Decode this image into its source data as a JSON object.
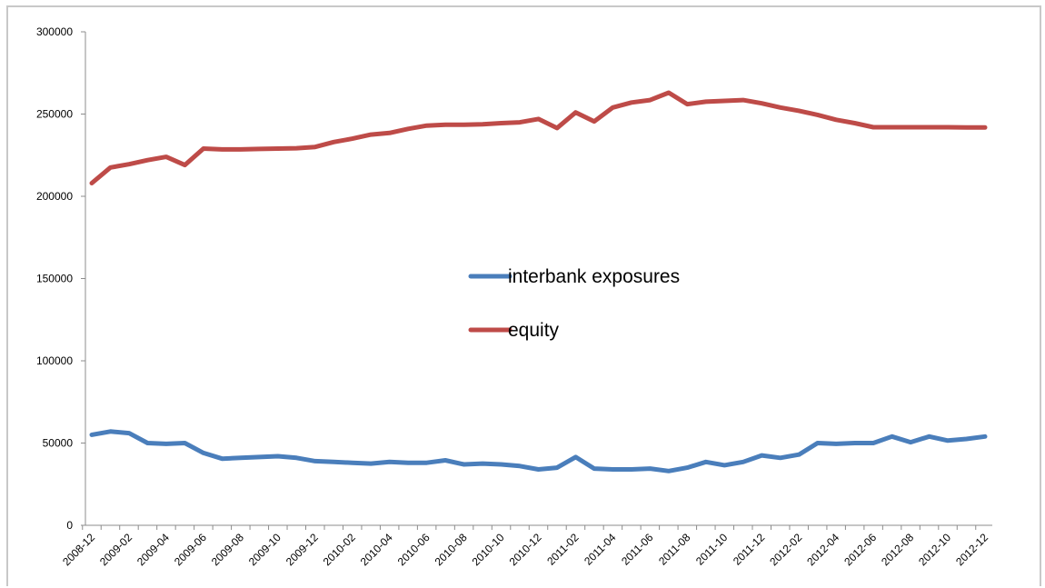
{
  "chart_data": {
    "type": "line",
    "title": "",
    "xlabel": "",
    "ylabel": "",
    "ylim": [
      0,
      300000
    ],
    "yticks": [
      "300000",
      "250000",
      "200000",
      "150000",
      "100000",
      "50000",
      "0"
    ],
    "x": [
      "2008-12",
      "2009-01",
      "2009-02",
      "2009-03",
      "2009-04",
      "2009-05",
      "2009-06",
      "2009-07",
      "2009-08",
      "2009-09",
      "2009-10",
      "2009-11",
      "2009-12",
      "2010-01",
      "2010-02",
      "2010-03",
      "2010-04",
      "2010-05",
      "2010-06",
      "2010-07",
      "2010-08",
      "2010-09",
      "2010-10",
      "2010-11",
      "2010-12",
      "2011-01",
      "2011-02",
      "2011-03",
      "2011-04",
      "2011-05",
      "2011-06",
      "2011-07",
      "2011-08",
      "2011-09",
      "2011-10",
      "2011-11",
      "2011-12",
      "2012-01",
      "2012-02",
      "2012-03",
      "2012-04",
      "2012-05",
      "2012-06",
      "2012-07",
      "2012-08",
      "2012-09",
      "2012-10",
      "2012-11",
      "2012-12"
    ],
    "x_tick_labels": [
      "2008-12",
      "2009-02",
      "2009-04",
      "2009-06",
      "2009-08",
      "2009-10",
      "2009-12",
      "2010-02",
      "2010-04",
      "2010-06",
      "2010-08",
      "2010-10",
      "2010-12",
      "2011-02",
      "2011-04",
      "2011-06",
      "2011-08",
      "2011-10",
      "2011-12",
      "2012-02",
      "2012-04",
      "2012-06",
      "2012-08",
      "2012-10",
      "2012-12"
    ],
    "grid": false,
    "legend_position": "center",
    "series": [
      {
        "name": "interbank exposures",
        "color": "#4a7ebb",
        "values": [
          55000,
          57000,
          56000,
          50000,
          49500,
          50000,
          44000,
          40500,
          41000,
          41500,
          42000,
          41000,
          39000,
          38500,
          38000,
          37500,
          38500,
          38000,
          38000,
          39500,
          37000,
          37500,
          37000,
          36000,
          34000,
          35000,
          41500,
          34500,
          34000,
          34000,
          34500,
          33000,
          35000,
          38500,
          36500,
          38500,
          42500,
          41000,
          43000,
          50000,
          49500,
          50000,
          50000,
          54000,
          50500,
          54000,
          51500,
          52500,
          54000
        ]
      },
      {
        "name": "equity",
        "color": "#be4b48",
        "values": [
          208000,
          217500,
          219500,
          222000,
          224000,
          219000,
          229000,
          228500,
          228500,
          228800,
          229000,
          229200,
          230000,
          233000,
          235000,
          237500,
          238500,
          241000,
          243000,
          243500,
          243500,
          243800,
          244500,
          245000,
          247000,
          241500,
          251000,
          245500,
          254000,
          257000,
          258500,
          263000,
          256000,
          257500,
          258000,
          258500,
          256500,
          254000,
          252000,
          249500,
          246500,
          244500,
          242000,
          242000,
          242000,
          242000,
          242000,
          241800,
          241800
        ]
      }
    ]
  }
}
